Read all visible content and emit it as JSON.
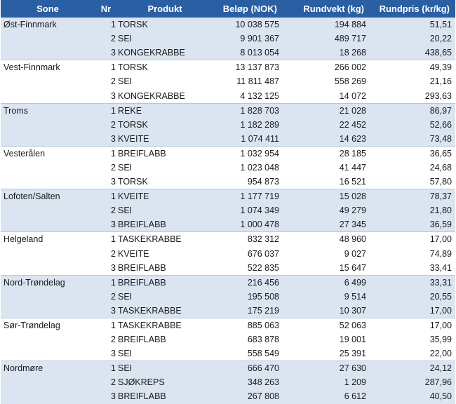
{
  "headers": {
    "sone": "Sone",
    "nr": "Nr",
    "produkt": "Produkt",
    "belop": "Beløp (NOK)",
    "rundvekt": "Rundvekt (kg)",
    "rundpris": "Rundpris (kr/kg)"
  },
  "groups": [
    {
      "sone": "Øst-Finnmark",
      "rows": [
        {
          "nr": "1",
          "produkt": "TORSK",
          "belop": "10 038 575",
          "rundvekt": "194 884",
          "rundpris": "51,51"
        },
        {
          "nr": "2",
          "produkt": "SEI",
          "belop": "9 901 367",
          "rundvekt": "489 717",
          "rundpris": "20,22"
        },
        {
          "nr": "3",
          "produkt": "KONGEKRABBE",
          "belop": "8 013 054",
          "rundvekt": "18 268",
          "rundpris": "438,65"
        }
      ]
    },
    {
      "sone": "Vest-Finnmark",
      "rows": [
        {
          "nr": "1",
          "produkt": "TORSK",
          "belop": "13 137 873",
          "rundvekt": "266 002",
          "rundpris": "49,39"
        },
        {
          "nr": "2",
          "produkt": "SEI",
          "belop": "11 811 487",
          "rundvekt": "558 269",
          "rundpris": "21,16"
        },
        {
          "nr": "3",
          "produkt": "KONGEKRABBE",
          "belop": "4 132 125",
          "rundvekt": "14 072",
          "rundpris": "293,63"
        }
      ]
    },
    {
      "sone": "Troms",
      "rows": [
        {
          "nr": "1",
          "produkt": "REKE",
          "belop": "1 828 703",
          "rundvekt": "21 028",
          "rundpris": "86,97"
        },
        {
          "nr": "2",
          "produkt": "TORSK",
          "belop": "1 182 289",
          "rundvekt": "22 452",
          "rundpris": "52,66"
        },
        {
          "nr": "3",
          "produkt": "KVEITE",
          "belop": "1 074 411",
          "rundvekt": "14 623",
          "rundpris": "73,48"
        }
      ]
    },
    {
      "sone": "Vesterålen",
      "rows": [
        {
          "nr": "1",
          "produkt": "BREIFLABB",
          "belop": "1 032 954",
          "rundvekt": "28 185",
          "rundpris": "36,65"
        },
        {
          "nr": "2",
          "produkt": "SEI",
          "belop": "1 023 048",
          "rundvekt": "41 447",
          "rundpris": "24,68"
        },
        {
          "nr": "3",
          "produkt": "TORSK",
          "belop": "954 873",
          "rundvekt": "16 521",
          "rundpris": "57,80"
        }
      ]
    },
    {
      "sone": "Lofoten/Salten",
      "rows": [
        {
          "nr": "1",
          "produkt": "KVEITE",
          "belop": "1 177 719",
          "rundvekt": "15 028",
          "rundpris": "78,37"
        },
        {
          "nr": "2",
          "produkt": "SEI",
          "belop": "1 074 349",
          "rundvekt": "49 279",
          "rundpris": "21,80"
        },
        {
          "nr": "3",
          "produkt": "BREIFLABB",
          "belop": "1 000 478",
          "rundvekt": "27 345",
          "rundpris": "36,59"
        }
      ]
    },
    {
      "sone": "Helgeland",
      "rows": [
        {
          "nr": "1",
          "produkt": "TASKEKRABBE",
          "belop": "832 312",
          "rundvekt": "48 960",
          "rundpris": "17,00"
        },
        {
          "nr": "2",
          "produkt": "KVEITE",
          "belop": "676 037",
          "rundvekt": "9 027",
          "rundpris": "74,89"
        },
        {
          "nr": "3",
          "produkt": "BREIFLABB",
          "belop": "522 835",
          "rundvekt": "15 647",
          "rundpris": "33,41"
        }
      ]
    },
    {
      "sone": "Nord-Trøndelag",
      "rows": [
        {
          "nr": "1",
          "produkt": "BREIFLABB",
          "belop": "216 456",
          "rundvekt": "6 499",
          "rundpris": "33,31"
        },
        {
          "nr": "2",
          "produkt": "SEI",
          "belop": "195 508",
          "rundvekt": "9 514",
          "rundpris": "20,55"
        },
        {
          "nr": "3",
          "produkt": "TASKEKRABBE",
          "belop": "175 219",
          "rundvekt": "10 307",
          "rundpris": "17,00"
        }
      ]
    },
    {
      "sone": "Sør-Trøndelag",
      "rows": [
        {
          "nr": "1",
          "produkt": "TASKEKRABBE",
          "belop": "885 063",
          "rundvekt": "52 063",
          "rundpris": "17,00"
        },
        {
          "nr": "2",
          "produkt": "BREIFLABB",
          "belop": "683 878",
          "rundvekt": "19 001",
          "rundpris": "35,99"
        },
        {
          "nr": "3",
          "produkt": "SEI",
          "belop": "558 549",
          "rundvekt": "25 391",
          "rundpris": "22,00"
        }
      ]
    },
    {
      "sone": "Nordmøre",
      "rows": [
        {
          "nr": "1",
          "produkt": "SEI",
          "belop": "666 470",
          "rundvekt": "27 630",
          "rundpris": "24,12"
        },
        {
          "nr": "2",
          "produkt": "SJØKREPS",
          "belop": "348 263",
          "rundvekt": "1 209",
          "rundpris": "287,96"
        },
        {
          "nr": "3",
          "produkt": "BREIFLABB",
          "belop": "267 808",
          "rundvekt": "6 612",
          "rundpris": "40,50"
        }
      ]
    }
  ]
}
